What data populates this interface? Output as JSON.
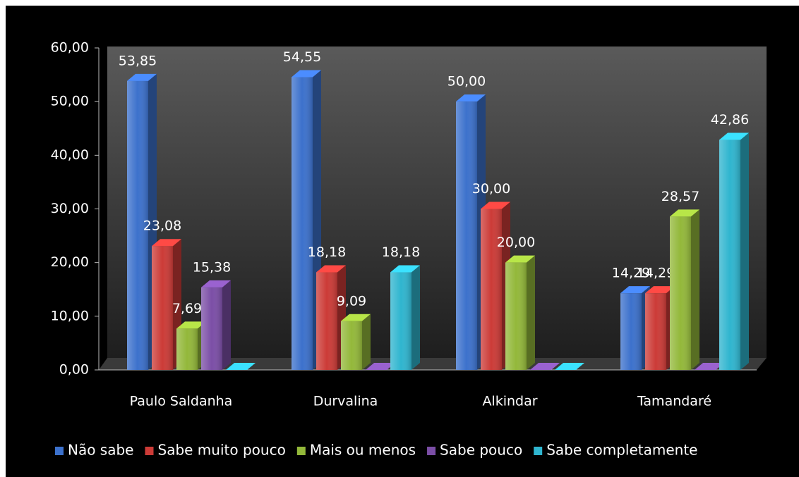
{
  "chart_data": {
    "type": "bar3d",
    "categories": [
      "Paulo Saldanha",
      "Durvalina",
      "Alkindar",
      "Tamandaré"
    ],
    "series": [
      {
        "name": "Não sabe",
        "color": "#3c71cc",
        "values": [
          53.85,
          54.55,
          50,
          14.29
        ],
        "value_labels": [
          "53,85",
          "54,55",
          "50,00",
          "14,29"
        ]
      },
      {
        "name": "Sabe muito pouco",
        "color": "#cc3b37",
        "values": [
          23.08,
          18.18,
          30,
          14.29
        ],
        "value_labels": [
          "23,08",
          "18,18",
          "30,00",
          "14,29"
        ]
      },
      {
        "name": "Mais ou menos",
        "color": "#93b83a",
        "values": [
          7.69,
          9.09,
          20,
          28.57
        ],
        "value_labels": [
          "7,69",
          "9,09",
          "20,00",
          "28,57"
        ]
      },
      {
        "name": "Sabe pouco",
        "color": "#7b4ea6",
        "values": [
          15.38,
          0,
          0,
          0
        ],
        "value_labels": [
          "15,38",
          null,
          null,
          null
        ]
      },
      {
        "name": "Sabe completamente",
        "color": "#2fb5cf",
        "values": [
          0,
          18.18,
          0,
          42.86
        ],
        "value_labels": [
          null,
          "18,18",
          null,
          "42,86"
        ]
      }
    ],
    "ylim": [
      0,
      60
    ],
    "yticks": [
      {
        "value": 0,
        "label": "0,00"
      },
      {
        "value": 10,
        "label": "10,00"
      },
      {
        "value": 20,
        "label": "20,00"
      },
      {
        "value": 30,
        "label": "30,00"
      },
      {
        "value": 40,
        "label": "40,00"
      },
      {
        "value": 50,
        "label": "50,00"
      },
      {
        "value": 60,
        "label": "60,00"
      }
    ],
    "legend": "bottom"
  }
}
